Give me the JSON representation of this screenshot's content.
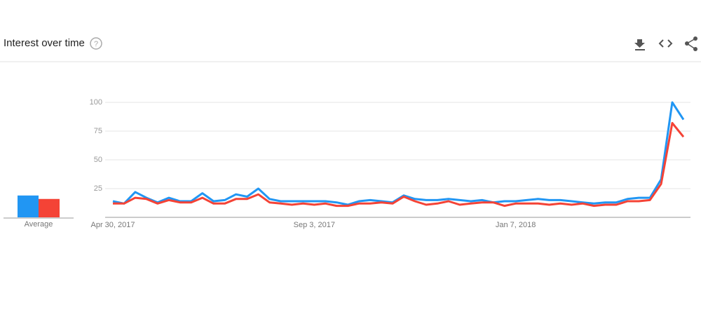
{
  "header": {
    "title": "Interest over time",
    "help_icon": "?"
  },
  "chart_data": {
    "type": "line",
    "categories": [
      "Apr 30, 2017",
      null,
      null,
      null,
      null,
      null,
      null,
      null,
      null,
      null,
      null,
      null,
      null,
      null,
      null,
      null,
      null,
      null,
      "Sep 3, 2017",
      null,
      null,
      null,
      null,
      null,
      null,
      null,
      null,
      null,
      null,
      null,
      null,
      null,
      null,
      null,
      null,
      null,
      "Jan 7, 2018",
      null,
      null,
      null,
      null,
      null,
      null,
      null,
      null,
      null,
      null,
      null,
      null,
      null,
      null,
      null
    ],
    "series": [
      {
        "color": "#2196f3",
        "average": 19,
        "values": [
          14,
          12,
          22,
          17,
          13,
          17,
          14,
          14,
          21,
          14,
          15,
          20,
          18,
          25,
          16,
          14,
          14,
          14,
          14,
          14,
          13,
          11,
          14,
          15,
          14,
          13,
          19,
          16,
          15,
          15,
          16,
          15,
          14,
          15,
          13,
          14,
          14,
          15,
          16,
          15,
          15,
          14,
          13,
          12,
          13,
          13,
          16,
          17,
          17,
          33,
          100,
          85
        ]
      },
      {
        "color": "#f44336",
        "average": 16,
        "values": [
          12,
          12,
          17,
          16,
          12,
          15,
          13,
          13,
          17,
          12,
          12,
          16,
          16,
          20,
          13,
          12,
          11,
          12,
          11,
          12,
          10,
          10,
          12,
          12,
          13,
          12,
          18,
          14,
          11,
          12,
          14,
          11,
          12,
          13,
          13,
          10,
          12,
          12,
          12,
          11,
          12,
          11,
          12,
          10,
          11,
          11,
          14,
          14,
          15,
          29,
          82,
          70
        ]
      }
    ],
    "average_label": "Average",
    "ylim": [
      0,
      100
    ],
    "yticks": [
      25,
      50,
      75,
      100
    ],
    "grid": true
  }
}
